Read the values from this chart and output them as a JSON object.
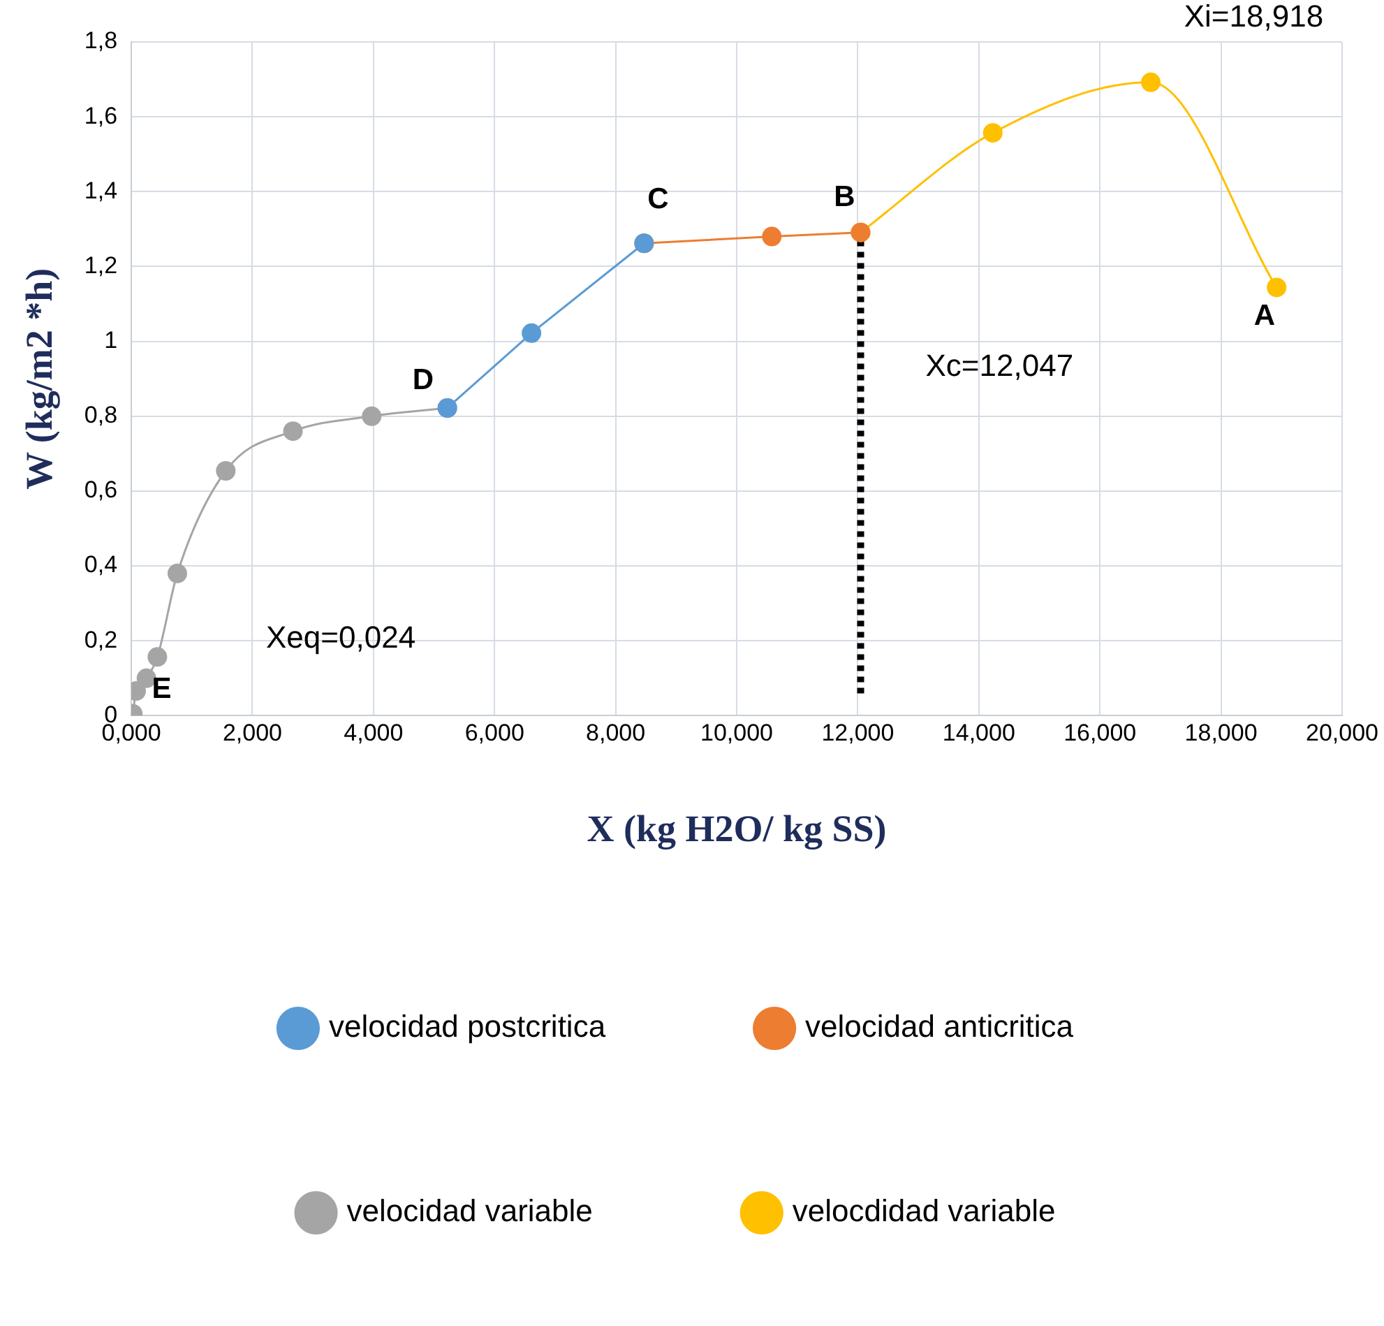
{
  "chart_data": {
    "type": "line",
    "xlabel": "X (kg H2O/ kg SS)",
    "ylabel": "W (kg/m2 *h)",
    "xlim": [
      0,
      20
    ],
    "xticks": [
      {
        "value": 0,
        "label": "0,000"
      },
      {
        "value": 2,
        "label": "2,000"
      },
      {
        "value": 4,
        "label": "4,000"
      },
      {
        "value": 6,
        "label": "6,000"
      },
      {
        "value": 8,
        "label": "8,000"
      },
      {
        "value": 10,
        "label": "10,000"
      },
      {
        "value": 12,
        "label": "12,000"
      },
      {
        "value": 14,
        "label": "14,000"
      },
      {
        "value": 16,
        "label": "16,000"
      },
      {
        "value": 18,
        "label": "18,000"
      },
      {
        "value": 20,
        "label": "20,000"
      }
    ],
    "ylim": [
      0,
      1.8
    ],
    "yticks": [
      0,
      {
        "value": 0.2,
        "label": "0,2"
      },
      {
        "value": 0.4,
        "label": "0,4"
      },
      {
        "value": 0.6,
        "label": "0,6"
      },
      {
        "value": 0.8,
        "label": "0,8"
      },
      1,
      {
        "value": 1.2,
        "label": "1,2"
      },
      {
        "value": 1.4,
        "label": "1,4"
      },
      {
        "value": 1.6,
        "label": "1,6"
      },
      {
        "value": 1.8,
        "label": "1,8"
      }
    ],
    "grid": true,
    "legend": "bottom",
    "marker": "circle",
    "series": [
      {
        "name": "velocidad postcritica",
        "color": "#5b9bd5",
        "x": [
          5.22,
          6.61,
          8.47
        ],
        "values": [
          0.822,
          1.022,
          1.262
        ]
      },
      {
        "name": "velocidad anticritica",
        "color": "#ed7d31",
        "x": [
          8.47,
          10.58,
          12.047
        ],
        "values": [
          1.262,
          1.28,
          1.291
        ]
      },
      {
        "name": "velocidad variable",
        "color": "#a5a5a5",
        "x": [
          0.024,
          0.08,
          0.25,
          0.43,
          0.76,
          1.56,
          2.67,
          3.97,
          5.22
        ],
        "values": [
          0.005,
          0.066,
          0.1,
          0.157,
          0.38,
          0.654,
          0.76,
          0.8,
          0.822
        ]
      },
      {
        "name": "velocdidad variable",
        "color": "#ffc000",
        "x": [
          12.047,
          14.23,
          16.84,
          18.918
        ],
        "values": [
          1.291,
          1.557,
          1.692,
          1.144
        ]
      }
    ],
    "ref_lines": [
      {
        "axis": "x",
        "value": 12.047,
        "color": "#000000",
        "line_style": "dotted"
      }
    ],
    "annotations": [
      "Xi=18,918",
      "Xc=12,047",
      "Xeq=0,024",
      "A",
      "B",
      "C",
      "D",
      "E"
    ]
  }
}
